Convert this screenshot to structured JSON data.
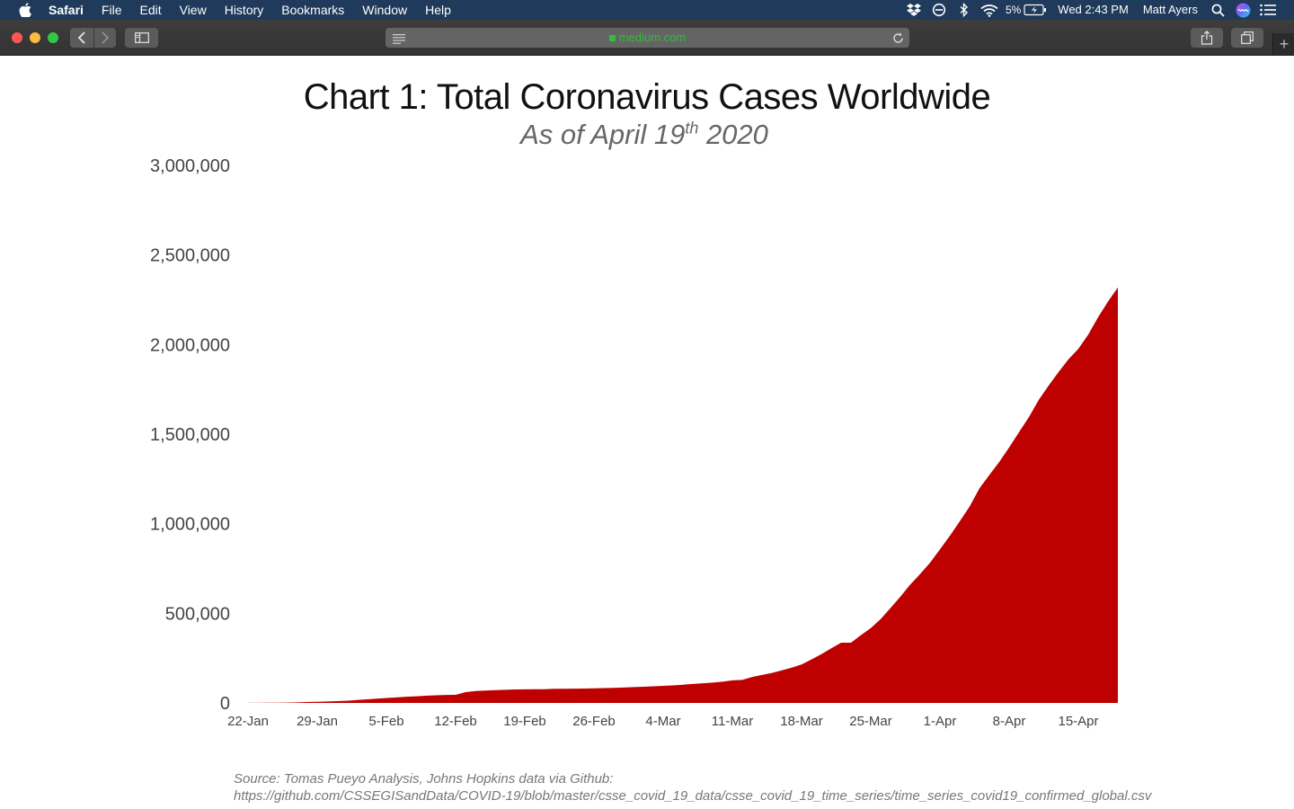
{
  "menubar": {
    "items": [
      "Safari",
      "File",
      "Edit",
      "View",
      "History",
      "Bookmarks",
      "Window",
      "Help"
    ],
    "battery": "5%",
    "clock": "Wed 2:43 PM",
    "user": "Matt Ayers"
  },
  "browser": {
    "url": "medium.com"
  },
  "chart": {
    "title": "Chart 1: Total Coronavirus Cases Worldwide",
    "subtitle_main": "As of April 19",
    "subtitle_sup": "th",
    "subtitle_year": " 2020",
    "source_line1": "Source: Tomas Pueyo Analysis, Johns Hopkins data via Github:",
    "source_line2": "https://github.com/CSSEGISandData/COVID-19/blob/master/csse_covid_19_data/csse_covid_19_time_series/time_series_covid19_confirmed_global.csv"
  },
  "chart_data": {
    "type": "area",
    "color": "#bf0000",
    "ylim": [
      0,
      3000000
    ],
    "y_ticks": [
      0,
      500000,
      1000000,
      1500000,
      2000000,
      2500000,
      3000000
    ],
    "y_tick_labels": [
      "0",
      "500,000",
      "1,000,000",
      "1,500,000",
      "2,000,000",
      "2,500,000",
      "3,000,000"
    ],
    "x_tick_labels": [
      "22-Jan",
      "29-Jan",
      "5-Feb",
      "12-Feb",
      "19-Feb",
      "26-Feb",
      "4-Mar",
      "11-Mar",
      "18-Mar",
      "25-Mar",
      "1-Apr",
      "8-Apr",
      "15-Apr"
    ],
    "x": [
      "2020-01-22",
      "2020-01-23",
      "2020-01-24",
      "2020-01-25",
      "2020-01-26",
      "2020-01-27",
      "2020-01-28",
      "2020-01-29",
      "2020-01-30",
      "2020-01-31",
      "2020-02-01",
      "2020-02-02",
      "2020-02-03",
      "2020-02-04",
      "2020-02-05",
      "2020-02-06",
      "2020-02-07",
      "2020-02-08",
      "2020-02-09",
      "2020-02-10",
      "2020-02-11",
      "2020-02-12",
      "2020-02-13",
      "2020-02-14",
      "2020-02-15",
      "2020-02-16",
      "2020-02-17",
      "2020-02-18",
      "2020-02-19",
      "2020-02-20",
      "2020-02-21",
      "2020-02-22",
      "2020-02-23",
      "2020-02-24",
      "2020-02-25",
      "2020-02-26",
      "2020-02-27",
      "2020-02-28",
      "2020-02-29",
      "2020-03-01",
      "2020-03-02",
      "2020-03-03",
      "2020-03-04",
      "2020-03-05",
      "2020-03-06",
      "2020-03-07",
      "2020-03-08",
      "2020-03-09",
      "2020-03-10",
      "2020-03-11",
      "2020-03-12",
      "2020-03-13",
      "2020-03-14",
      "2020-03-15",
      "2020-03-16",
      "2020-03-17",
      "2020-03-18",
      "2020-03-19",
      "2020-03-20",
      "2020-03-21",
      "2020-03-22",
      "2020-03-23",
      "2020-03-24",
      "2020-03-25",
      "2020-03-26",
      "2020-03-27",
      "2020-03-28",
      "2020-03-29",
      "2020-03-30",
      "2020-03-31",
      "2020-04-01",
      "2020-04-02",
      "2020-04-03",
      "2020-04-04",
      "2020-04-05",
      "2020-04-06",
      "2020-04-07",
      "2020-04-08",
      "2020-04-09",
      "2020-04-10",
      "2020-04-11",
      "2020-04-12",
      "2020-04-13",
      "2020-04-14",
      "2020-04-15",
      "2020-04-16",
      "2020-04-17",
      "2020-04-18",
      "2020-04-19"
    ],
    "values": [
      555,
      654,
      941,
      1434,
      2118,
      2927,
      5578,
      6166,
      8234,
      9927,
      12038,
      16787,
      19881,
      23892,
      27635,
      30794,
      34391,
      37120,
      40150,
      42762,
      44802,
      45221,
      60368,
      66885,
      69030,
      71224,
      73258,
      75136,
      75639,
      76197,
      76819,
      78572,
      78958,
      79561,
      80406,
      81388,
      82746,
      84112,
      86011,
      88369,
      90306,
      92840,
      95120,
      97886,
      101801,
      105847,
      109821,
      113590,
      118620,
      125875,
      128343,
      145193,
      156097,
      167449,
      181546,
      197142,
      214910,
      242708,
      272166,
      304524,
      335955,
      336004,
      378287,
      418041,
      467653,
      529591,
      593291,
      660706,
      720117,
      782365,
      857487,
      932605,
      1013157,
      1095917,
      1197405,
      1272115,
      1345101,
      1426096,
      1511104,
      1595350,
      1691719,
      1771514,
      1846680,
      1917320,
      1976191,
      2056054,
      2152437,
      2240191,
      2319066
    ]
  }
}
